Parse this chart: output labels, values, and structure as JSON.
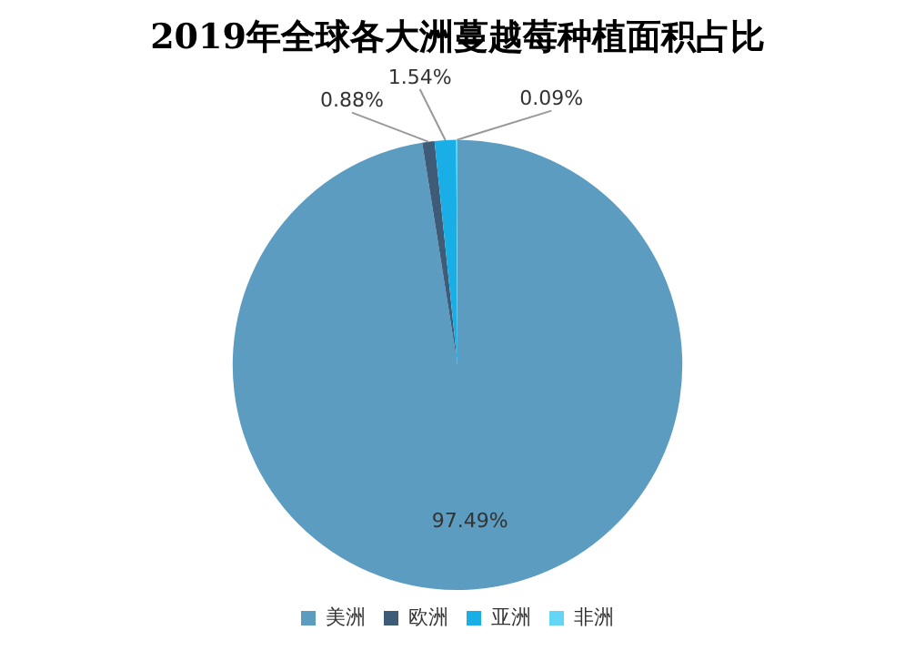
{
  "chart_data": {
    "type": "pie",
    "title": "2019年全球各大洲蔓越莓种植面积占比",
    "categories": [
      "美洲",
      "欧洲",
      "亚洲",
      "非洲"
    ],
    "values": [
      97.49,
      0.88,
      1.54,
      0.09
    ],
    "colors": [
      "#5b9cc0",
      "#3e5c78",
      "#1aaee6",
      "#62d6f4"
    ],
    "value_labels": [
      "97.49%",
      "0.88%",
      "1.54%",
      "0.09%"
    ],
    "legend": "bottom"
  }
}
